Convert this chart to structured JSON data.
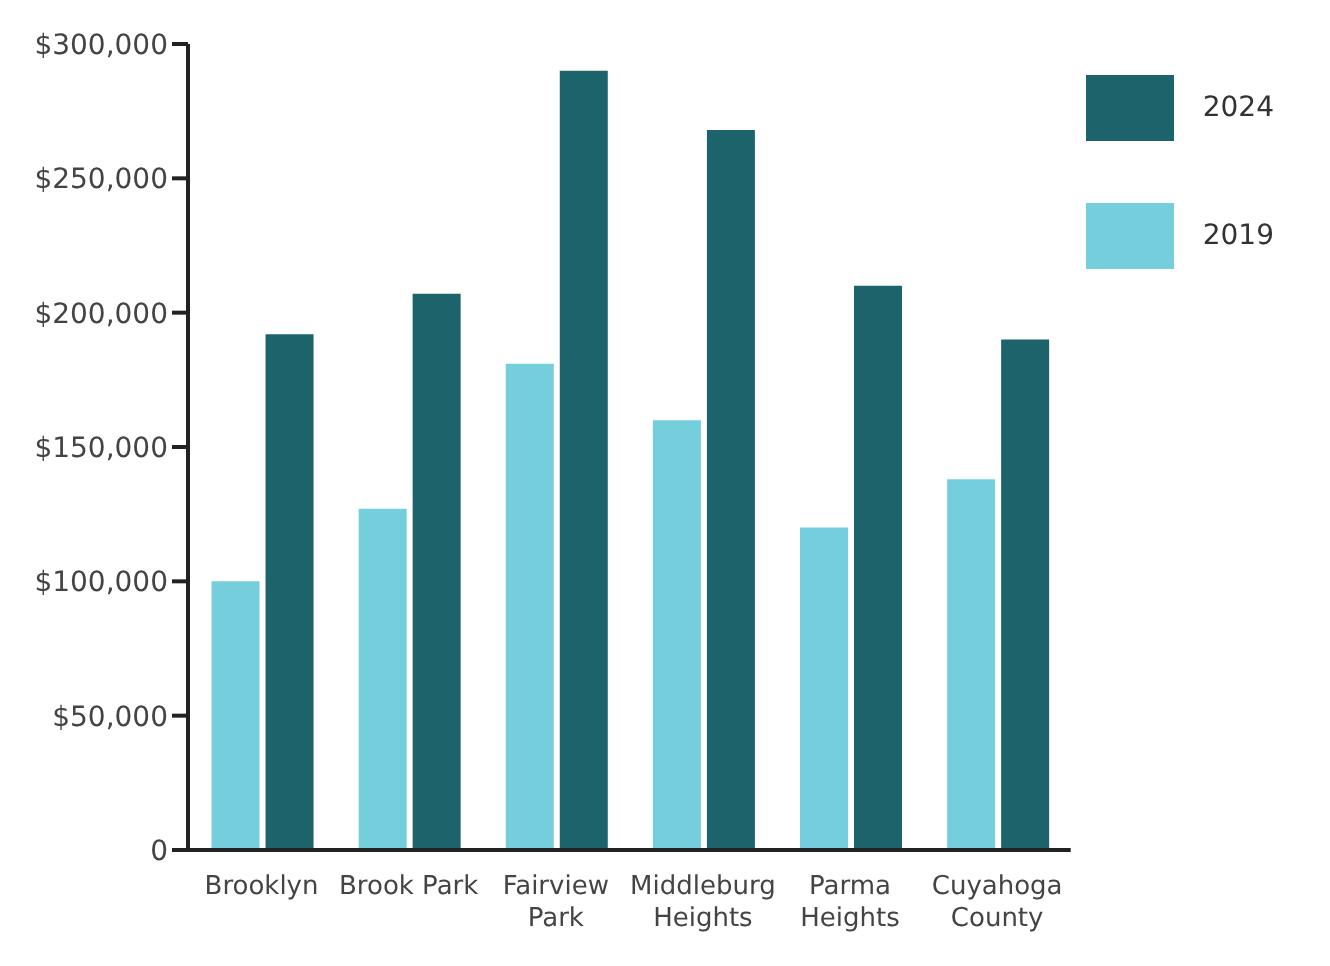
{
  "chart_data": {
    "type": "bar",
    "categories": [
      "Brooklyn",
      "Brook Park",
      "Fairview Park",
      "Middleburg Heights",
      "Parma Heights",
      "Cuyahoga County"
    ],
    "series": [
      {
        "name": "2019",
        "color": "#74cedc",
        "values": [
          100000,
          127000,
          181000,
          160000,
          120000,
          138000
        ]
      },
      {
        "name": "2024",
        "color": "#1d636c",
        "values": [
          192000,
          207000,
          290000,
          268000,
          210000,
          190000
        ]
      }
    ],
    "ylim": [
      0,
      300000
    ],
    "yticks": [
      {
        "value": 0,
        "label": "0"
      },
      {
        "value": 50000,
        "label": "$50,000"
      },
      {
        "value": 100000,
        "label": "$100,000"
      },
      {
        "value": 150000,
        "label": "$150,000"
      },
      {
        "value": 200000,
        "label": "$200,000"
      },
      {
        "value": 250000,
        "label": "$250,000"
      },
      {
        "value": 300000,
        "label": "$300,000"
      }
    ],
    "grid": false,
    "legend": "top right"
  }
}
